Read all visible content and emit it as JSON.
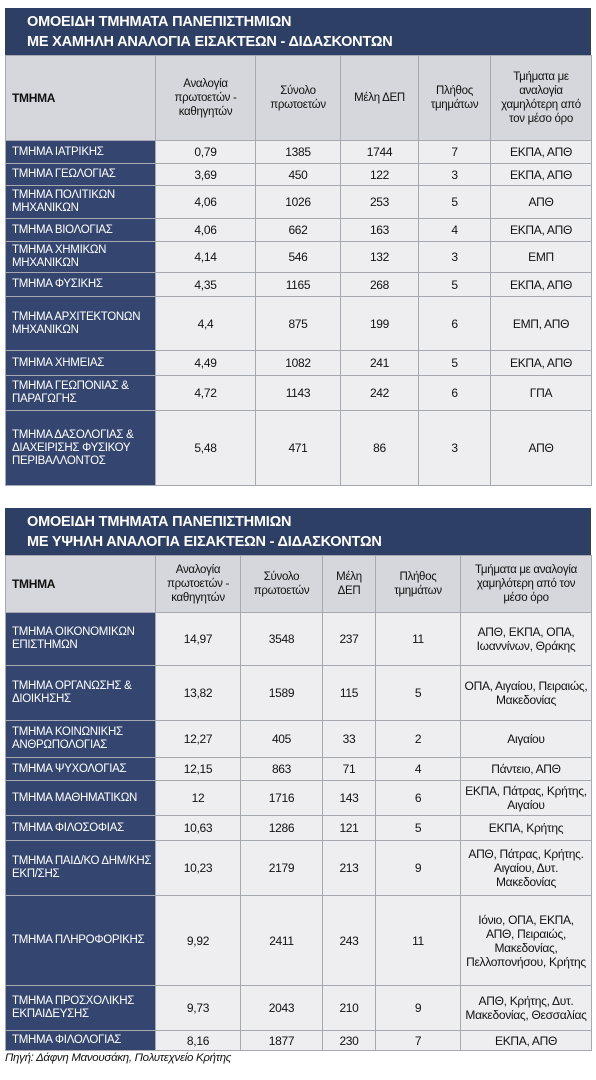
{
  "tables": [
    {
      "title": [
        "ΟΜΟΕΙΔΗ ΤΜΗΜΑΤΑ ΠΑΝΕΠΙΣΤΗΜΙΩΝ",
        "ΜΕ ΧΑΜΗΛΗ ΑΝΑΛΟΓΙΑ ΕΙΣΑΚΤΕΩΝ - ΔΙΔΑΣΚΟΝΤΩΝ"
      ],
      "headers": [
        "ΤΜΗΜΑ",
        "Αναλογία πρωτοετών - καθηγητών",
        "Σύνολο πρωτοετών",
        "Μέλη ΔΕΠ",
        "Πλήθος τμημάτων",
        "Τμήματα με αναλογία χαμηλότερη από τον μέσο όρο"
      ],
      "rows": [
        [
          "ΤΜΗΜΑ ΙΑΤΡΙΚΗΣ",
          "0,79",
          "1385",
          "1744",
          "7",
          "ΕΚΠΑ, ΑΠΘ"
        ],
        [
          "ΤΜΗΜΑ ΓΕΩΛΟΓΙΑΣ",
          "3,69",
          "450",
          "122",
          "3",
          "ΕΚΠΑ, ΑΠΘ"
        ],
        [
          "ΤΜΗΜΑ ΠΟΛΙΤΙΚΩΝ ΜΗΧΑΝΙΚΩΝ",
          "4,06",
          "1026",
          "253",
          "5",
          "ΑΠΘ"
        ],
        [
          "ΤΜΗΜΑ ΒΙΟΛΟΓΙΑΣ",
          "4,06",
          "662",
          "163",
          "4",
          "ΕΚΠΑ, ΑΠΘ"
        ],
        [
          "ΤΜΗΜΑ ΧΗΜΙΚΩΝ ΜΗΧΑΝΙΚΩΝ",
          "4,14",
          "546",
          "132",
          "3",
          "ΕΜΠ"
        ],
        [
          "ΤΜΗΜΑ ΦΥΣΙΚΗΣ",
          "4,35",
          "1165",
          "268",
          "5",
          "ΕΚΠΑ, ΑΠΘ"
        ],
        [
          "ΤΜΗΜΑ ΑΡΧΙΤΕΚΤΟΝΩΝ ΜΗΧΑΝΙΚΩΝ",
          "4,4",
          "875",
          "199",
          "6",
          "ΕΜΠ, ΑΠΘ"
        ],
        [
          "ΤΜΗΜΑ ΧΗΜΕΙΑΣ",
          "4,49",
          "1082",
          "241",
          "5",
          "ΕΚΠΑ, ΑΠΘ"
        ],
        [
          "ΤΜΗΜΑ ΓΕΩΠΟΝΙΑΣ & ΠΑΡΑΓΩΓΗΣ",
          "4,72",
          "1143",
          "242",
          "6",
          "ΓΠΑ"
        ],
        [
          "ΤΜΗΜΑ ΔΑΣΟΛΟΓΙΑΣ & ΔΙΑΧΕΙΡΙΣΗΣ ΦΥΣΙΚΟΥ ΠΕΡΙΒΑΛΛΟΝΤΟΣ",
          "5,48",
          "471",
          "86",
          "3",
          "ΑΠΘ"
        ]
      ]
    },
    {
      "title": [
        "ΟΜΟΕΙΔΗ ΤΜΗΜΑΤΑ ΠΑΝΕΠΙΣΤΗΜΙΩΝ",
        "ΜΕ ΥΨΗΛΗ ΑΝΑΛΟΓΙΑ ΕΙΣΑΚΤΕΩΝ - ΔΙΔΑΣΚΟΝΤΩΝ"
      ],
      "headers": [
        "ΤΜΗΜΑ",
        "Αναλογία πρωτοετών - καθηγητών",
        "Σύνολο πρωτοετών",
        "Μέλη ΔΕΠ",
        "Πλήθος τμημάτων",
        "Τμήματα με αναλογία χαμηλότερη από τον μέσο όρο"
      ],
      "rows": [
        [
          "ΤΜΗΜΑ ΟΙΚΟΝΟΜΙΚΩΝ ΕΠΙΣΤΗΜΩΝ",
          "14,97",
          "3548",
          "237",
          "11",
          "ΑΠΘ, ΕΚΠΑ, ΟΠΑ, Ιωαννίνων, Θράκης"
        ],
        [
          "ΤΜΗΜΑ ΟΡΓΑΝΩΣΗΣ & ΔΙΟΙΚΗΣΗΣ",
          "13,82",
          "1589",
          "115",
          "5",
          "ΟΠΑ, Αιγαίου, Πειραιώς, Μακεδονίας"
        ],
        [
          "ΤΜΗΜΑ ΚΟΙΝΩΝΙΚΗΣ ΑΝΘΡΩΠΟΛΟΓΙΑΣ",
          "12,27",
          "405",
          "33",
          "2",
          "Αιγαίου"
        ],
        [
          "ΤΜΗΜΑ ΨΥΧΟΛΟΓΙΑΣ",
          "12,15",
          "863",
          "71",
          "4",
          "Πάντειο, ΑΠΘ"
        ],
        [
          "ΤΜΗΜΑ ΜΑΘΗΜΑΤΙΚΩΝ",
          "12",
          "1716",
          "143",
          "6",
          "ΕΚΠΑ, Πάτρας, Κρήτης, Αιγαίου"
        ],
        [
          "ΤΜΗΜΑ ΦΙΛΟΣΟΦΙΑΣ",
          "10,63",
          "1286",
          "121",
          "5",
          "ΕΚΠΑ, Κρήτης"
        ],
        [
          "ΤΜΗΜΑ ΠΑΙΔ/ΚΟ ΔΗΜ/ΚΗΣ ΕΚΠ/ΣΗΣ",
          "10,23",
          "2179",
          "213",
          "9",
          "ΑΠΘ, Πάτρας, Κρήτης. Αιγαίου, Δυτ. Μακεδονίας"
        ],
        [
          "ΤΜΗΜΑ ΠΛΗΡΟΦΟΡΙΚΗΣ",
          "9,92",
          "2411",
          "243",
          "11",
          "Ιόνιο, ΟΠΑ, ΕΚΠΑ, ΑΠΘ, Πειραιώς, Μακεδονίας, Πελλοπονήσου, Κρήτης"
        ],
        [
          "ΤΜΗΜΑ ΠΡΟΣΧΟΛΙΚΗΣ ΕΚΠΑΙΔΕΥΣΗΣ",
          "9,73",
          "2043",
          "210",
          "9",
          "ΑΠΘ, Κρήτης, Δυτ. Μακεδονίας, Θεσσαλίας"
        ],
        [
          "ΤΜΗΜΑ ΦΙΛΟΛΟΓΙΑΣ",
          "8,16",
          "1877",
          "230",
          "7",
          "ΕΚΠΑ, ΑΠΘ"
        ]
      ]
    }
  ],
  "source": "Πηγή: Δάφνη Μανουσάκη, Πολυτεχνείο Κρήτης"
}
